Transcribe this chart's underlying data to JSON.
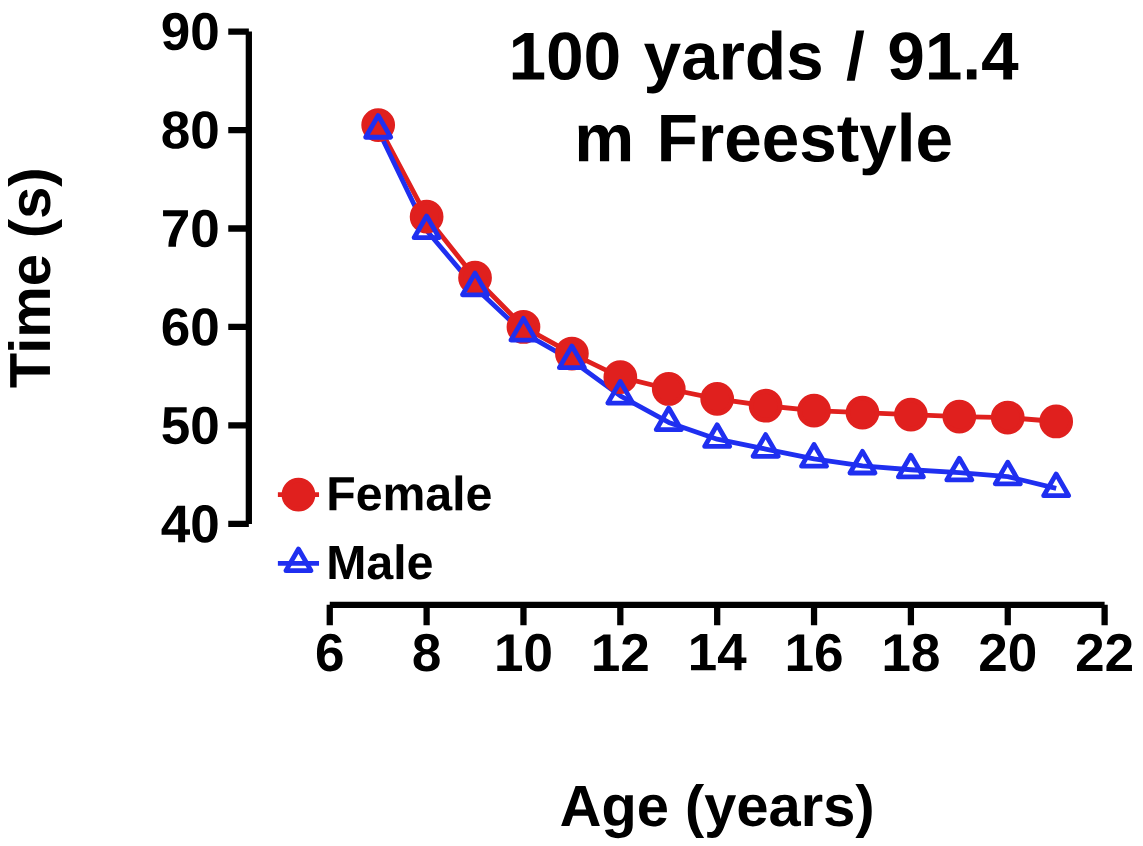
{
  "chart_data": {
    "type": "line",
    "title": "100 yards / 91.4 m Freestyle",
    "xlabel": "Age (years)",
    "ylabel": "Time (s)",
    "x": [
      7,
      8,
      9,
      10,
      11,
      12,
      13,
      14,
      15,
      16,
      17,
      18,
      19,
      20,
      21
    ],
    "series": [
      {
        "name": "Female",
        "color": "#e0201e",
        "marker": "circle",
        "values": [
          80.5,
          71.2,
          65.0,
          60.0,
          57.3,
          54.9,
          53.7,
          52.7,
          52.0,
          51.5,
          51.3,
          51.1,
          50.9,
          50.8,
          50.4
        ]
      },
      {
        "name": "Male",
        "color": "#1f2ff0",
        "marker": "triangle",
        "values": [
          80.0,
          69.8,
          64.0,
          59.4,
          56.6,
          53.0,
          50.3,
          48.6,
          47.6,
          46.6,
          45.9,
          45.5,
          45.2,
          44.8,
          43.6
        ]
      }
    ],
    "xlim": [
      6,
      22
    ],
    "ylim": [
      40,
      90
    ],
    "xticks": [
      6,
      8,
      10,
      12,
      14,
      16,
      18,
      20,
      22
    ],
    "yticks": [
      40,
      50,
      60,
      70,
      80,
      90
    ],
    "grid": false,
    "legend": "bottom left"
  }
}
